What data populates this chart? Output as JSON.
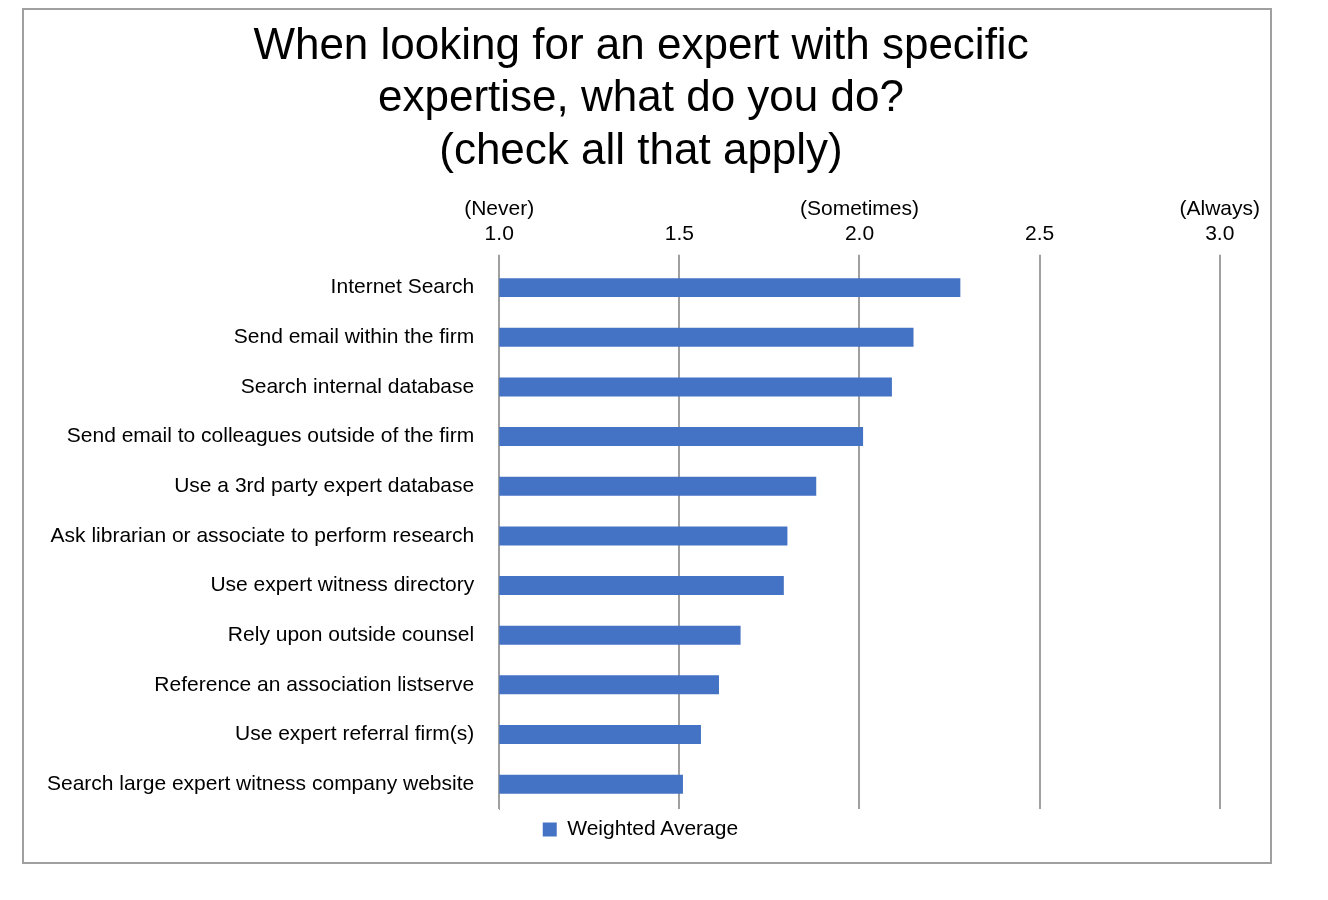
{
  "chart_data": {
    "type": "bar",
    "orientation": "horizontal",
    "title": "When looking for an expert with specific expertise, what do you do? (check all that apply)",
    "categories": [
      "Internet Search",
      "Send email within the firm",
      "Search internal database",
      "Send email to colleagues outside of the firm",
      "Use a 3rd party expert database",
      "Ask librarian or associate to perform research",
      "Use expert witness directory",
      "Rely upon outside counsel",
      "Reference an association listserve",
      "Use expert referral firm(s)",
      "Search large expert witness company website"
    ],
    "series": [
      {
        "name": "Weighted Average",
        "color": "#4472c4",
        "values": [
          2.28,
          2.15,
          2.09,
          2.01,
          1.88,
          1.8,
          1.79,
          1.67,
          1.61,
          1.56,
          1.51
        ]
      }
    ],
    "xlim": [
      1,
      3
    ],
    "xticks": [
      {
        "value": 1,
        "label": "(Never)\n1.0"
      },
      {
        "value": 1.5,
        "label": "1.5"
      },
      {
        "value": 2,
        "label": "(Sometimes)\n2.0"
      },
      {
        "value": 2.5,
        "label": "2.5"
      },
      {
        "value": 3,
        "label": "(Always)\n3.0"
      }
    ],
    "grid": "x",
    "legend": "bottom"
  }
}
